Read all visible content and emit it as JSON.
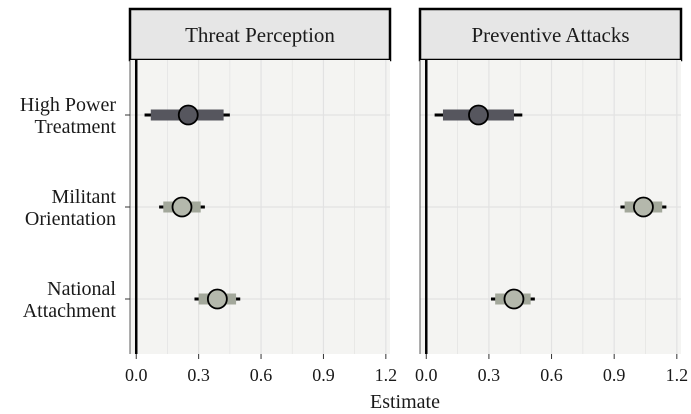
{
  "chart_data": {
    "type": "scatter",
    "subtype": "coefficient-plot",
    "xlabel": "Estimate",
    "x_ticks": [
      "0.0",
      "0.3",
      "0.6",
      "0.9",
      "1.2"
    ],
    "x_tick_values": [
      0.0,
      0.3,
      0.6,
      0.9,
      1.2
    ],
    "xlim": [
      -0.03,
      1.22
    ],
    "reference_line": 0,
    "grid": true,
    "categories": [
      {
        "key": "high_power",
        "lines": [
          "High Power",
          "Treatment"
        ]
      },
      {
        "key": "militant",
        "lines": [
          "Militant",
          "Orientation"
        ]
      },
      {
        "key": "national",
        "lines": [
          "National",
          "Attachment"
        ]
      }
    ],
    "facets": [
      {
        "title": "Threat Perception",
        "points": [
          {
            "category": "high_power",
            "estimate": 0.25,
            "ci_inner": [
              0.07,
              0.42
            ],
            "ci_outer": [
              0.04,
              0.45
            ],
            "group": "treatment"
          },
          {
            "category": "militant",
            "estimate": 0.22,
            "ci_inner": [
              0.13,
              0.31
            ],
            "ci_outer": [
              0.11,
              0.33
            ],
            "group": "covariate"
          },
          {
            "category": "national",
            "estimate": 0.39,
            "ci_inner": [
              0.3,
              0.48
            ],
            "ci_outer": [
              0.28,
              0.5
            ],
            "group": "covariate"
          }
        ]
      },
      {
        "title": "Preventive Attacks",
        "points": [
          {
            "category": "high_power",
            "estimate": 0.25,
            "ci_inner": [
              0.08,
              0.42
            ],
            "ci_outer": [
              0.04,
              0.46
            ],
            "group": "treatment"
          },
          {
            "category": "militant",
            "estimate": 1.04,
            "ci_inner": [
              0.95,
              1.13
            ],
            "ci_outer": [
              0.93,
              1.15
            ],
            "group": "covariate"
          },
          {
            "category": "national",
            "estimate": 0.42,
            "ci_inner": [
              0.33,
              0.5
            ],
            "ci_outer": [
              0.31,
              0.52
            ],
            "group": "covariate"
          }
        ]
      }
    ],
    "colors": {
      "treatment_bar": "#56565e",
      "treatment_point": "#56565e",
      "covariate_bar": "#a3a89b",
      "covariate_point": "#b4b8ac",
      "panel_bg": "#f4f4f2",
      "strip_bg": "#e6e6e6",
      "grid": "#e2e2e2",
      "zero_line": "#000000"
    }
  }
}
